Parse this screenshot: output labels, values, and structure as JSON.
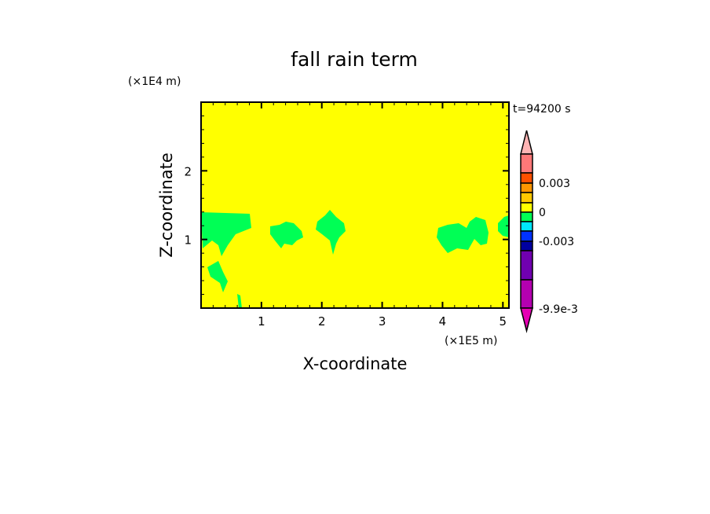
{
  "chart_data": {
    "type": "heatmap",
    "title": "fall rain term",
    "xlabel": "X-coordinate",
    "ylabel": "Z-coordinate",
    "x_unit": "(×1E5 m)",
    "y_unit": "(×1E4 m)",
    "time_label": "t=94200 s",
    "xlim": [
      0,
      5.1
    ],
    "ylim": [
      0,
      3.0
    ],
    "x_ticks": [
      "1",
      "2",
      "3",
      "4",
      "5"
    ],
    "y_ticks": [
      "1",
      "2"
    ],
    "background_color": "#ffff00",
    "field_color": "#00ff55",
    "field_regions_note_x": [
      {
        "x": [
          0,
          0.8
        ],
        "z": [
          0.8,
          1.4
        ]
      },
      {
        "x": [
          1.15,
          1.7
        ],
        "z": [
          0.9,
          1.3
        ]
      },
      {
        "x": [
          1.9,
          2.4
        ],
        "z": [
          0.9,
          1.4
        ]
      },
      {
        "x": [
          3.9,
          4.85
        ],
        "z": [
          0.8,
          1.35
        ]
      },
      {
        "x": [
          4.95,
          5.1
        ],
        "z": [
          1.05,
          1.3
        ]
      }
    ],
    "colorbar": {
      "labels": [
        "0.003",
        "0",
        "-0.003",
        "-9.9e-3"
      ],
      "colors": [
        "#ffb4b4",
        "#ff7878",
        "#ff5000",
        "#ff9600",
        "#ffc800",
        "#ffff00",
        "#00ff55",
        "#00e6ff",
        "#0032ff",
        "#0000a0",
        "#7000b0",
        "#b400b0",
        "#e600b4"
      ]
    }
  }
}
